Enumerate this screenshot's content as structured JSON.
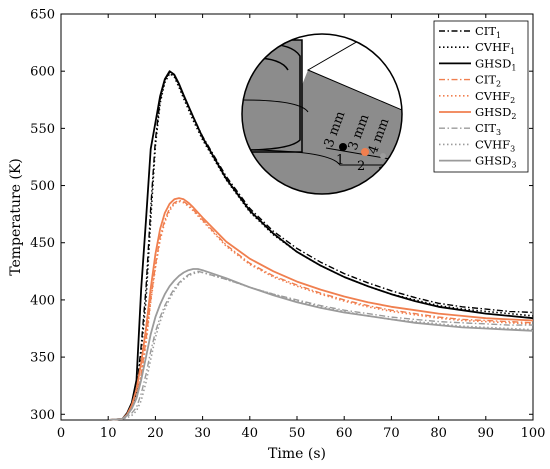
{
  "chart_data": {
    "type": "line",
    "xlabel": "Time (s)",
    "ylabel": "Temperature (K)",
    "xlim": [
      0,
      100
    ],
    "ylim": [
      295,
      650
    ],
    "xticks": [
      0,
      10,
      20,
      30,
      40,
      50,
      60,
      70,
      80,
      90,
      100
    ],
    "yticks": [
      300,
      350,
      400,
      450,
      500,
      550,
      600,
      650
    ],
    "grid": false,
    "legend_position": "top-right",
    "colors": {
      "group1": "#000000",
      "group2": "#f07f4f",
      "group3": "#9b9b9b"
    },
    "series": [
      {
        "name": "CIT",
        "sub": "1",
        "group": 1,
        "style": "dashdot",
        "x": [
          10,
          13,
          14,
          15,
          16,
          17,
          18,
          19,
          20,
          21,
          22,
          23,
          24,
          25,
          26,
          28,
          30,
          35,
          40,
          45,
          50,
          55,
          60,
          65,
          70,
          75,
          80,
          85,
          90,
          95,
          100
        ],
        "y": [
          295,
          296,
          300,
          308,
          320,
          360,
          410,
          480,
          540,
          575,
          592,
          599,
          596,
          588,
          578,
          560,
          543,
          508,
          480,
          460,
          445,
          433,
          423,
          415,
          408,
          402,
          397,
          394,
          392,
          390,
          389
        ]
      },
      {
        "name": "CVHF",
        "sub": "1",
        "group": 1,
        "style": "dotted",
        "x": [
          10,
          13,
          14,
          15,
          16,
          17,
          18,
          19,
          20,
          21,
          22,
          23,
          24,
          25,
          26,
          28,
          30,
          35,
          40,
          45,
          50,
          55,
          60,
          65,
          70,
          75,
          80,
          85,
          90,
          95,
          100
        ],
        "y": [
          295,
          296,
          300,
          307,
          318,
          355,
          400,
          470,
          535,
          572,
          590,
          598,
          595,
          586,
          576,
          557,
          540,
          505,
          477,
          457,
          442,
          430,
          420,
          412,
          405,
          400,
          395,
          392,
          390,
          388,
          386
        ]
      },
      {
        "name": "GHSD",
        "sub": "1",
        "group": 1,
        "style": "solid",
        "x": [
          10,
          13,
          14,
          15,
          16,
          17,
          18,
          19,
          20,
          21,
          22,
          23,
          24,
          25,
          26,
          28,
          30,
          35,
          40,
          45,
          50,
          55,
          60,
          65,
          70,
          75,
          80,
          85,
          90,
          95,
          100
        ],
        "y": [
          295,
          296,
          301,
          310,
          330,
          410,
          470,
          532,
          555,
          578,
          593,
          600,
          597,
          589,
          579,
          560,
          542,
          506,
          478,
          458,
          442,
          430,
          420,
          412,
          405,
          399,
          394,
          391,
          388,
          386,
          384
        ]
      },
      {
        "name": "CIT",
        "sub": "2",
        "group": 2,
        "style": "dashdot",
        "x": [
          10,
          13,
          14,
          15,
          16,
          17,
          18,
          19,
          20,
          21,
          22,
          23,
          24,
          25,
          26,
          27,
          28,
          30,
          35,
          40,
          45,
          50,
          55,
          60,
          65,
          70,
          75,
          80,
          85,
          90,
          95,
          100
        ],
        "y": [
          295,
          296,
          299,
          305,
          315,
          335,
          365,
          400,
          430,
          455,
          470,
          480,
          485,
          487,
          486,
          483,
          479,
          470,
          448,
          432,
          421,
          413,
          406,
          400,
          395,
          391,
          388,
          385,
          383,
          382,
          381,
          380
        ]
      },
      {
        "name": "CVHF",
        "sub": "2",
        "group": 2,
        "style": "dotted",
        "x": [
          10,
          13,
          14,
          15,
          16,
          17,
          18,
          19,
          20,
          21,
          22,
          23,
          24,
          25,
          26,
          27,
          28,
          30,
          35,
          40,
          45,
          50,
          55,
          60,
          65,
          70,
          75,
          80,
          85,
          90,
          95,
          100
        ],
        "y": [
          295,
          296,
          299,
          305,
          314,
          333,
          362,
          398,
          428,
          452,
          468,
          478,
          484,
          486,
          485,
          482,
          478,
          469,
          447,
          431,
          420,
          412,
          405,
          399,
          394,
          390,
          387,
          384,
          382,
          381,
          380,
          379
        ]
      },
      {
        "name": "GHSD",
        "sub": "2",
        "group": 2,
        "style": "solid",
        "x": [
          10,
          13,
          14,
          15,
          16,
          17,
          18,
          19,
          20,
          21,
          22,
          23,
          24,
          25,
          26,
          27,
          28,
          30,
          35,
          40,
          45,
          50,
          55,
          60,
          65,
          70,
          75,
          80,
          85,
          90,
          95,
          100
        ],
        "y": [
          295,
          296,
          300,
          308,
          322,
          345,
          375,
          410,
          440,
          462,
          476,
          484,
          488,
          489,
          488,
          485,
          481,
          472,
          451,
          436,
          425,
          416,
          409,
          403,
          398,
          394,
          391,
          388,
          386,
          384,
          383,
          382
        ]
      },
      {
        "name": "CIT",
        "sub": "3",
        "group": 3,
        "style": "dashdot",
        "x": [
          10,
          13,
          14,
          15,
          16,
          17,
          18,
          19,
          20,
          21,
          22,
          23,
          24,
          25,
          26,
          27,
          28,
          29,
          30,
          35,
          40,
          45,
          50,
          55,
          60,
          65,
          70,
          75,
          80,
          85,
          90,
          95,
          100
        ],
        "y": [
          295,
          296,
          298,
          301,
          306,
          318,
          335,
          355,
          372,
          385,
          395,
          403,
          410,
          415,
          419,
          422,
          424,
          425,
          424,
          418,
          411,
          405,
          400,
          395,
          391,
          388,
          385,
          383,
          381,
          380,
          379,
          378,
          378
        ]
      },
      {
        "name": "CVHF",
        "sub": "3",
        "group": 3,
        "style": "dotted",
        "x": [
          10,
          13,
          14,
          15,
          16,
          17,
          18,
          19,
          20,
          21,
          22,
          23,
          24,
          25,
          26,
          27,
          28,
          29,
          30,
          35,
          40,
          45,
          50,
          55,
          60,
          65,
          70,
          75,
          80,
          85,
          90,
          95,
          100
        ],
        "y": [
          295,
          296,
          297,
          299,
          303,
          312,
          328,
          348,
          367,
          381,
          392,
          401,
          408,
          414,
          418,
          421,
          423,
          424,
          424,
          418,
          411,
          405,
          399,
          394,
          390,
          386,
          383,
          381,
          379,
          377,
          376,
          375,
          374
        ]
      },
      {
        "name": "GHSD",
        "sub": "3",
        "group": 3,
        "style": "solid",
        "x": [
          10,
          13,
          14,
          15,
          16,
          17,
          18,
          19,
          20,
          21,
          22,
          23,
          24,
          25,
          26,
          27,
          28,
          29,
          30,
          35,
          40,
          45,
          50,
          55,
          60,
          65,
          70,
          75,
          80,
          85,
          90,
          95,
          100
        ],
        "y": [
          295,
          296,
          299,
          305,
          314,
          330,
          350,
          370,
          385,
          396,
          405,
          412,
          417,
          421,
          424,
          426,
          427,
          427,
          426,
          419,
          411,
          404,
          398,
          393,
          389,
          386,
          383,
          380,
          378,
          376,
          375,
          374,
          373
        ]
      }
    ],
    "inset": {
      "labels": [
        "3 mm",
        "3 mm",
        "4 mm"
      ],
      "points": [
        "1",
        "2",
        "3"
      ]
    }
  }
}
